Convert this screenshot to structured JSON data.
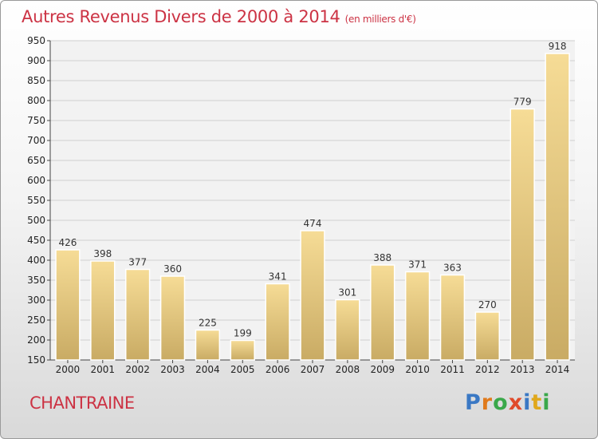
{
  "title": "Autres Revenus Divers de 2000 à 2014",
  "title_unit": "(en milliers d'€)",
  "city": "CHANTRAINE",
  "logo": {
    "letters": [
      {
        "ch": "P",
        "color": "#3a78c4"
      },
      {
        "ch": "r",
        "color": "#e07a1c"
      },
      {
        "ch": "o",
        "color": "#3aa84a"
      },
      {
        "ch": "x",
        "color": "#e04a2a"
      },
      {
        "ch": "i",
        "color": "#3a78c4"
      },
      {
        "ch": "t",
        "color": "#e0a81c"
      },
      {
        "ch": "i",
        "color": "#3aa84a"
      }
    ]
  },
  "colors": {
    "title": "#cc3344",
    "bar_light": "#f6dc96",
    "bar_dark": "#c9ab64",
    "grid": "#d0d0d0"
  },
  "chart_data": {
    "type": "bar",
    "categories": [
      "2000",
      "2001",
      "2002",
      "2003",
      "2004",
      "2005",
      "2006",
      "2007",
      "2008",
      "2009",
      "2010",
      "2011",
      "2012",
      "2013",
      "2014"
    ],
    "values": [
      426,
      398,
      377,
      360,
      225,
      199,
      341,
      474,
      301,
      388,
      371,
      363,
      270,
      779,
      918
    ],
    "ylim": [
      150,
      950
    ],
    "yticks": [
      150,
      200,
      250,
      300,
      350,
      400,
      450,
      500,
      550,
      600,
      650,
      700,
      750,
      800,
      850,
      900,
      950
    ],
    "grid": true
  }
}
